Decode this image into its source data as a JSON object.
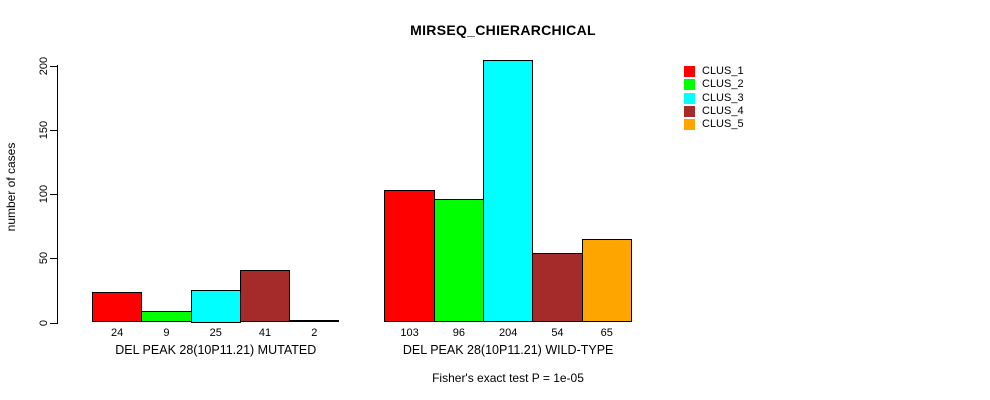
{
  "figure": {
    "background": "#ffffff"
  },
  "chart_data": {
    "type": "bar",
    "title": "MIRSEQ_CHIERARCHICAL",
    "ylabel": "number of cases",
    "xlabel": "",
    "ylim": [
      0,
      200
    ],
    "yticks": [
      0,
      50,
      100,
      150,
      200
    ],
    "grid": false,
    "legend_position": "top-right",
    "categories": [
      "DEL PEAK 28(10P11.21) MUTATED",
      "DEL PEAK 28(10P11.21) WILD-TYPE"
    ],
    "series": [
      {
        "name": "CLUS_1",
        "color": "#ff0000",
        "values": [
          24,
          103
        ]
      },
      {
        "name": "CLUS_2",
        "color": "#00ff00",
        "values": [
          9,
          96
        ]
      },
      {
        "name": "CLUS_3",
        "color": "#00ffff",
        "values": [
          25,
          204
        ]
      },
      {
        "name": "CLUS_4",
        "color": "#a52a2a",
        "values": [
          41,
          54
        ]
      },
      {
        "name": "CLUS_5",
        "color": "#ffa500",
        "values": [
          2,
          65
        ]
      }
    ],
    "bar_value_labels_visible": true,
    "annotation": "Fisher's exact test P = 1e-05"
  }
}
